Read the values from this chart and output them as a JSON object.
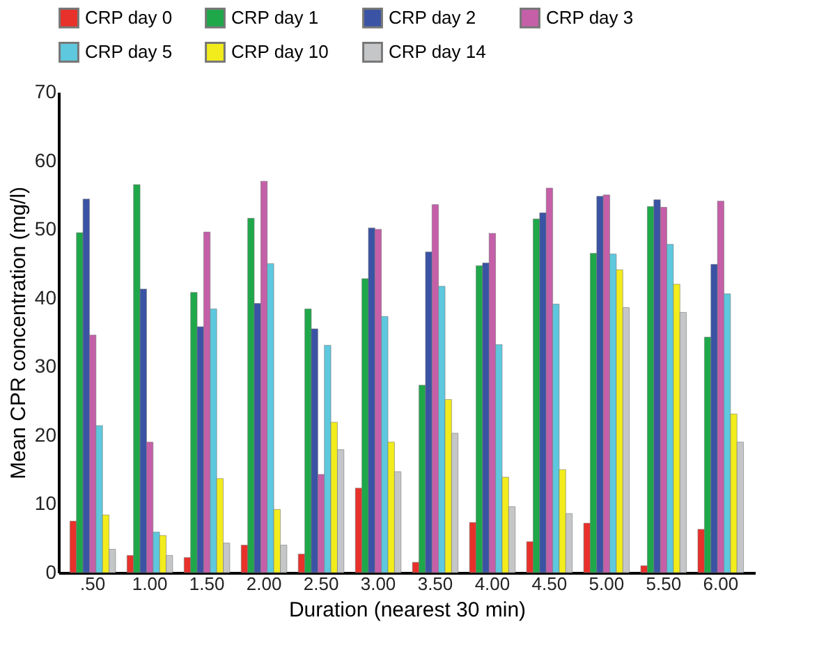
{
  "chart_data": {
    "type": "bar",
    "xlabel": "Duration (nearest 30 min)",
    "ylabel": "Mean CPR concentration (mg/l)",
    "categories": [
      ".50",
      "1.00",
      "1.50",
      "2.00",
      "2.50",
      "3.00",
      "3.50",
      "4.00",
      "4.50",
      "5.00",
      "5.50",
      "6.00"
    ],
    "series": [
      {
        "name": "CRP day 0",
        "color": "#e8312a",
        "values": [
          7.5,
          2.5,
          2.2,
          4,
          2.7,
          12.3,
          1.5,
          7.3,
          4.5,
          7.2,
          1,
          6.3
        ]
      },
      {
        "name": "CRP day 1",
        "color": "#1fa84a",
        "values": [
          49.5,
          56.5,
          40.8,
          51.6,
          38.4,
          42.8,
          27.3,
          44.7,
          51.5,
          46.5,
          53.3,
          34.3
        ]
      },
      {
        "name": "CRP day 2",
        "color": "#3a53a4",
        "values": [
          54.4,
          41.3,
          35.8,
          39.2,
          35.5,
          50.2,
          46.7,
          45.1,
          52.4,
          54.8,
          54.3,
          44.9
        ]
      },
      {
        "name": "CRP day 3",
        "color": "#c45fa8",
        "values": [
          34.6,
          19,
          49.6,
          57,
          14.3,
          50,
          53.6,
          49.4,
          56,
          55,
          53.2,
          54.1
        ]
      },
      {
        "name": "CRP day 5",
        "color": "#5ec8de",
        "values": [
          21.4,
          5.9,
          38.4,
          45,
          33.1,
          37.3,
          41.7,
          33.2,
          39.1,
          46.4,
          47.8,
          40.6
        ]
      },
      {
        "name": "CRP day 10",
        "color": "#f2ec1c",
        "values": [
          8.4,
          5.4,
          13.7,
          9.2,
          21.9,
          19,
          25.2,
          13.9,
          15,
          44.1,
          42,
          23.1
        ]
      },
      {
        "name": "CRP day 14",
        "color": "#c4c6c8",
        "values": [
          3.4,
          2.5,
          4.3,
          4,
          17.9,
          14.7,
          20.3,
          9.6,
          8.6,
          38.6,
          37.9,
          19
        ]
      }
    ],
    "ylim": [
      0,
      70
    ],
    "yticks": [
      0,
      10,
      20,
      30,
      40,
      50,
      60,
      70
    ],
    "grid": false,
    "legend": "top"
  }
}
